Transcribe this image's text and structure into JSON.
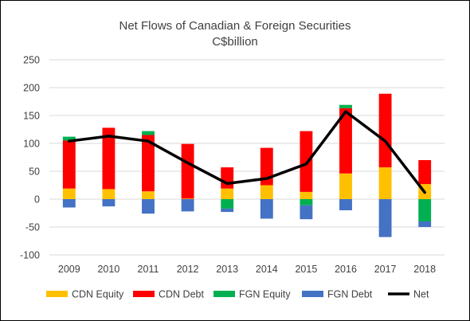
{
  "chart_data": {
    "type": "bar",
    "stacked": true,
    "title": "Net Flows of Canadian & Foreign Securities",
    "subtitle": "C$billion",
    "xlabel": "",
    "ylabel": "",
    "categories": [
      "2009",
      "2010",
      "2011",
      "2012",
      "2013",
      "2014",
      "2015",
      "2016",
      "2017",
      "2018"
    ],
    "ylim": [
      -100,
      250
    ],
    "yticks": [
      "-100",
      "-50",
      "0",
      "50",
      "100",
      "150",
      "200",
      "250"
    ],
    "grid": true,
    "legend_position": "bottom",
    "series": [
      {
        "name": "CDN Equity",
        "type": "bar",
        "color": "#FFC000",
        "values": [
          19,
          18,
          14,
          1,
          19,
          25,
          13,
          46,
          57,
          27
        ]
      },
      {
        "name": "CDN Debt",
        "type": "bar",
        "color": "#FF0000",
        "values": [
          86,
          110,
          101,
          98,
          38,
          67,
          109,
          117,
          132,
          43
        ]
      },
      {
        "name": "FGN Equity",
        "type": "bar",
        "color": "#00B050",
        "values": [
          7,
          0,
          7,
          0,
          -17,
          0,
          -11,
          6,
          0,
          -40
        ]
      },
      {
        "name": "FGN Debt",
        "type": "bar",
        "color": "#4472C4",
        "values": [
          -15,
          -13,
          -26,
          -22,
          -6,
          -35,
          -25,
          -20,
          -68,
          -10
        ]
      },
      {
        "name": "Net",
        "type": "line",
        "color": "#000000",
        "values": [
          104,
          113,
          104,
          65,
          28,
          37,
          63,
          157,
          104,
          12
        ]
      }
    ]
  }
}
